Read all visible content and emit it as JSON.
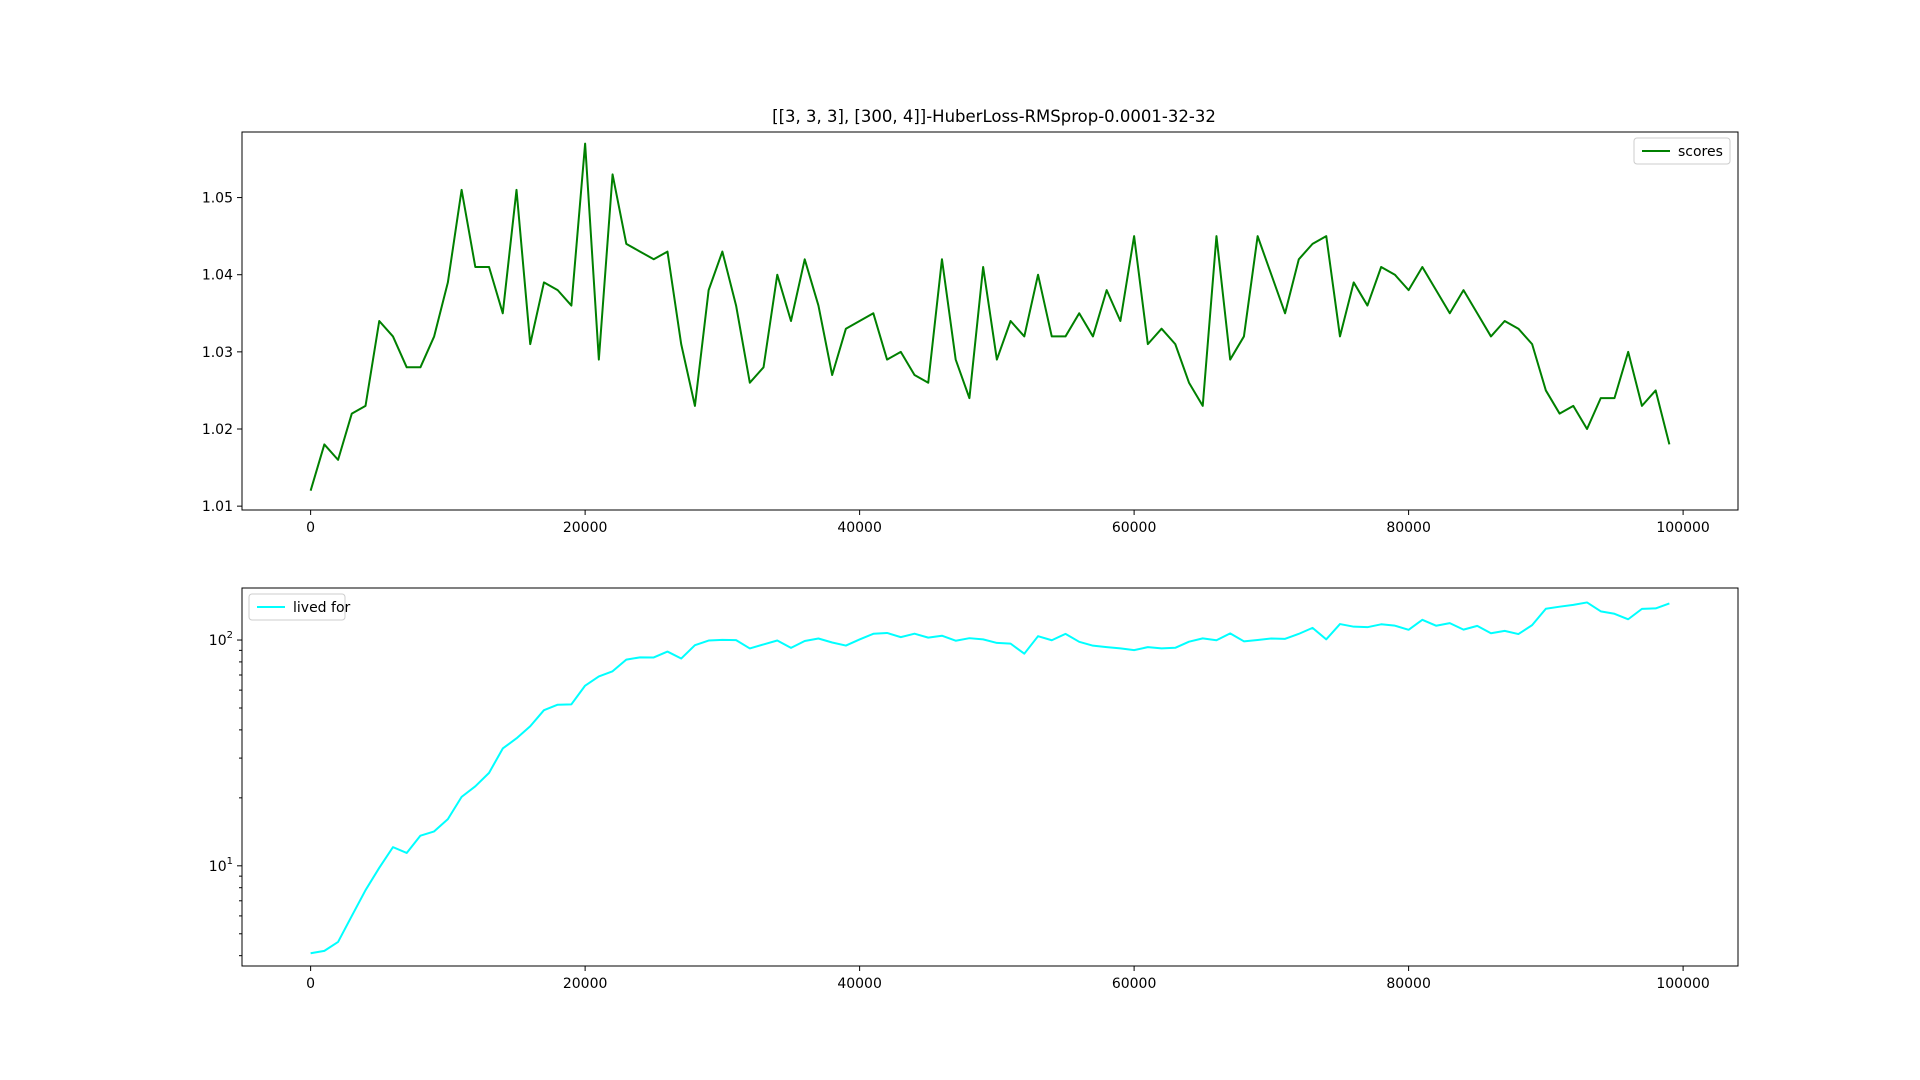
{
  "figure": {
    "title": "[[3, 3, 3], [300, 4]]-HuberLoss-RMSprop-0.0001-32-32"
  },
  "chart_data": [
    {
      "type": "line",
      "title": "[[3, 3, 3], [300, 4]]-HuberLoss-RMSprop-0.0001-32-32",
      "xlabel": "",
      "ylabel": "",
      "xlim": [
        -5000,
        104000
      ],
      "ylim": [
        1.0095,
        1.0585
      ],
      "yscale": "linear",
      "grid": false,
      "legend_position": "top-right",
      "x_ticks": [
        0,
        20000,
        40000,
        60000,
        80000,
        100000
      ],
      "x_tick_labels": [
        "0",
        "20000",
        "40000",
        "60000",
        "80000",
        "100000"
      ],
      "y_ticks": [
        1.01,
        1.02,
        1.03,
        1.04,
        1.05
      ],
      "y_tick_labels": [
        "1.01",
        "1.02",
        "1.03",
        "1.04",
        "1.05"
      ],
      "series": [
        {
          "name": "scores",
          "color": "#008000",
          "x_start": 0,
          "x_step": 1000,
          "values": [
            1.012,
            1.018,
            1.016,
            1.022,
            1.023,
            1.034,
            1.032,
            1.028,
            1.028,
            1.032,
            1.039,
            1.051,
            1.041,
            1.041,
            1.035,
            1.051,
            1.031,
            1.039,
            1.038,
            1.036,
            1.057,
            1.029,
            1.053,
            1.044,
            1.043,
            1.042,
            1.043,
            1.031,
            1.023,
            1.038,
            1.043,
            1.036,
            1.026,
            1.028,
            1.04,
            1.034,
            1.042,
            1.036,
            1.027,
            1.033,
            1.034,
            1.035,
            1.029,
            1.03,
            1.027,
            1.026,
            1.042,
            1.029,
            1.024,
            1.041,
            1.029,
            1.034,
            1.032,
            1.04,
            1.032,
            1.032,
            1.035,
            1.032,
            1.038,
            1.034,
            1.045,
            1.031,
            1.033,
            1.031,
            1.026,
            1.023,
            1.045,
            1.029,
            1.032,
            1.045,
            1.04,
            1.035,
            1.042,
            1.044,
            1.045,
            1.032,
            1.039,
            1.036,
            1.041,
            1.04,
            1.038,
            1.041,
            1.038,
            1.035,
            1.038,
            1.035,
            1.032,
            1.034,
            1.033,
            1.031,
            1.025,
            1.022,
            1.023,
            1.02,
            1.024,
            1.024,
            1.03,
            1.023,
            1.025,
            1.018
          ]
        }
      ]
    },
    {
      "type": "line",
      "title": "",
      "xlabel": "",
      "ylabel": "",
      "xlim": [
        -5000,
        104000
      ],
      "ylim": [
        3.6,
        170
      ],
      "yscale": "log",
      "grid": false,
      "legend_position": "top-left",
      "x_ticks": [
        0,
        20000,
        40000,
        60000,
        80000,
        100000
      ],
      "x_tick_labels": [
        "0",
        "20000",
        "40000",
        "60000",
        "80000",
        "100000"
      ],
      "y_ticks": [
        10,
        100
      ],
      "y_tick_labels": [
        {
          "base": "10",
          "exp": "1"
        },
        {
          "base": "10",
          "exp": "2"
        }
      ],
      "y_minor_ticks": [
        4,
        5,
        6,
        7,
        8,
        9,
        20,
        30,
        40,
        50,
        60,
        70,
        80,
        90
      ],
      "series": [
        {
          "name": "lived for",
          "color": "#00ffff",
          "x_start": 0,
          "x_step": 1000,
          "values": [
            4.1,
            4.2,
            4.6,
            6.0,
            7.8,
            9.8,
            12.1,
            11.4,
            13.6,
            14.2,
            16.1,
            20.2,
            22.5,
            25.8,
            33.1,
            36.7,
            41.5,
            48.9,
            51.7,
            51.9,
            62.8,
            69.0,
            72.7,
            81.9,
            83.8,
            83.7,
            88.9,
            82.8,
            94.9,
            99.5,
            100.2,
            99.9,
            91.8,
            95.6,
            99.5,
            92.3,
            99.0,
            101.6,
            97.5,
            94.5,
            100.6,
            106.6,
            107.5,
            103.0,
            106.7,
            102.5,
            104.5,
            99.3,
            101.9,
            100.7,
            97.1,
            96.4,
            87.0,
            104.0,
            99.8,
            106.5,
            98.2,
            94.4,
            93.0,
            91.8,
            90.2,
            93.0,
            91.8,
            92.4,
            98.3,
            101.7,
            99.8,
            107.0,
            98.7,
            100.0,
            101.6,
            101.2,
            106.5,
            113.2,
            100.7,
            117.7,
            114.6,
            114.0,
            117.4,
            115.8,
            111.0,
            122.9,
            115.7,
            118.8,
            111.2,
            115.5,
            107.2,
            109.8,
            106.3,
            116.4,
            137.6,
            140.5,
            143.1,
            146.7,
            134.0,
            130.7,
            123.6,
            137.4,
            138.1,
            145.2
          ]
        }
      ]
    }
  ]
}
